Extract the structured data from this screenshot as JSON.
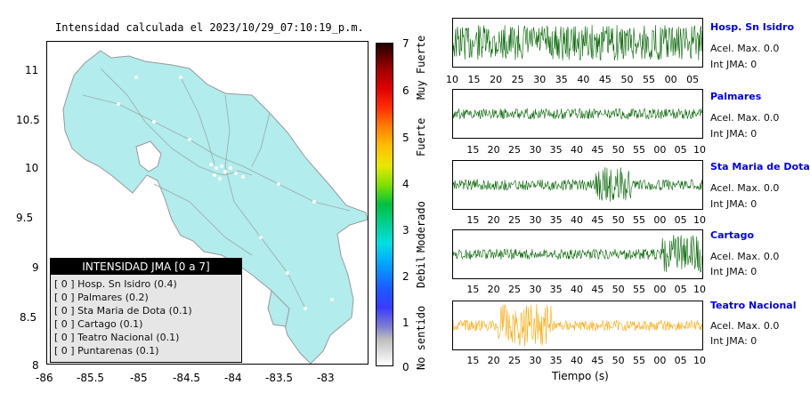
{
  "map": {
    "title": "Intensidad calculada el 2023/10/29_07:10:19_p.m.",
    "y_ticks": [
      "11",
      "10.5",
      "10",
      "9.5",
      "9",
      "8.5",
      "8"
    ],
    "x_ticks": [
      "-86",
      "-85.5",
      "-85",
      "-84.5",
      "-84",
      "-83.5",
      "-83"
    ],
    "land_color": "#b2ecec"
  },
  "legend": {
    "title": "INTENSIDAD JMA [0 a 7]",
    "items": [
      "[ 0 ]  Hosp. Sn Isidro (0.4)",
      "[ 0 ]  Palmares (0.2)",
      "[ 0 ]  Sta Maria de Dota (0.1)",
      "[ 0 ]  Cartago (0.1)",
      "[ 0 ]  Teatro Nacional (0.1)",
      "[ 0 ]  Puntarenas (0.1)"
    ]
  },
  "colorbar": {
    "numbers": [
      "7",
      "6",
      "5",
      "4",
      "3",
      "2",
      "1",
      "0"
    ],
    "words": [
      "Muy Fuerte",
      "Fuerte",
      "Moderado",
      "Debil",
      "No sentido"
    ]
  },
  "stations": [
    {
      "name": "Hosp. Sn Isidro",
      "acel": "Acel. Max. 0.0",
      "int": "Int JMA: 0",
      "color": "#006400",
      "ticks": [
        "10",
        "15",
        "20",
        "25",
        "30",
        "35",
        "40",
        "45",
        "50",
        "55",
        "00",
        "05"
      ]
    },
    {
      "name": "Palmares",
      "acel": "Acel. Max. 0.0",
      "int": "Int JMA: 0",
      "color": "#006400",
      "ticks": [
        "15",
        "20",
        "25",
        "30",
        "35",
        "40",
        "45",
        "50",
        "55",
        "00",
        "05",
        "10"
      ]
    },
    {
      "name": "Sta Maria de Dota",
      "acel": "Acel. Max. 0.0",
      "int": "Int JMA: 0",
      "color": "#006400",
      "ticks": [
        "15",
        "20",
        "25",
        "30",
        "35",
        "40",
        "45",
        "50",
        "55",
        "00",
        "05",
        "10"
      ]
    },
    {
      "name": "Cartago",
      "acel": "Acel. Max. 0.0",
      "int": "Int JMA: 0",
      "color": "#006400",
      "ticks": [
        "15",
        "20",
        "25",
        "30",
        "35",
        "40",
        "45",
        "50",
        "55",
        "00",
        "05",
        "10"
      ]
    },
    {
      "name": "Teatro Nacional",
      "acel": "Acel. Max. 0.0",
      "int": "Int JMA: 0",
      "color": "#ffa500",
      "ticks": [
        "15",
        "20",
        "25",
        "30",
        "35",
        "40",
        "45",
        "50",
        "55",
        "00",
        "05",
        "10"
      ]
    }
  ],
  "time_label": "Tiempo (s)"
}
